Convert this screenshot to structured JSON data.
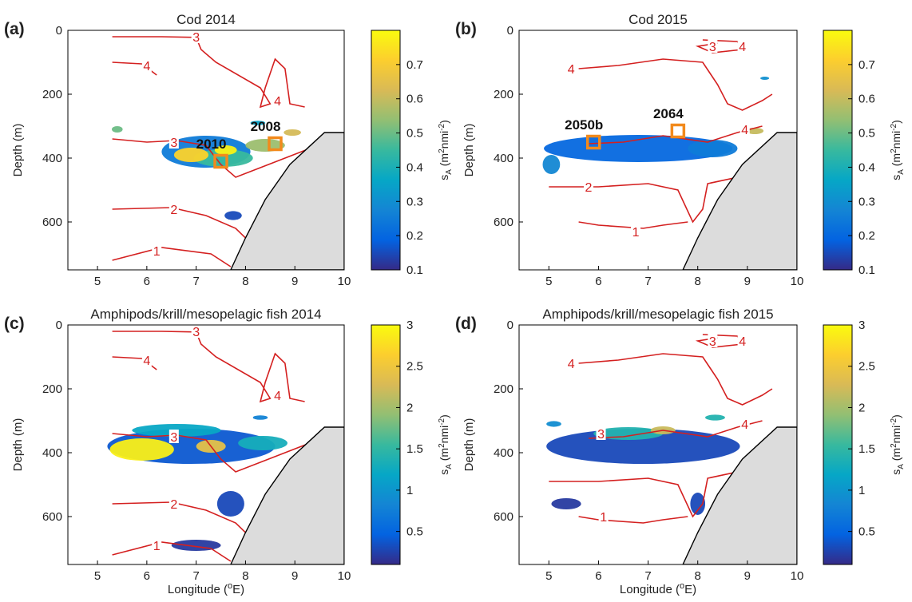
{
  "colors": {
    "contour": "#d42020",
    "station_box": "#f28a1c",
    "land": "#dcdcdc",
    "colormap": [
      "#352a87",
      "#0363e1",
      "#1485d4",
      "#06a7c6",
      "#38b99e",
      "#92bf73",
      "#d9ba56",
      "#fcce2e",
      "#f9fb0e"
    ]
  },
  "chart_data": [
    {
      "type": "heatmap",
      "panel_label": "(a)",
      "title": "Cod 2014",
      "xlabel": "",
      "ylabel": "Depth (m)",
      "xlim": [
        4.4,
        10
      ],
      "ylim": [
        0,
        750
      ],
      "xticks": [
        "5",
        "6",
        "7",
        "8",
        "9",
        "10"
      ],
      "yticks": [
        "0",
        "200",
        "400",
        "600"
      ],
      "colorbar": {
        "label_main": "s",
        "label_sub": "A",
        "label_unit": " (m",
        "label_exp1": "2",
        "label_mid": "nmi",
        "label_exp2": "-2",
        "label_end": ")",
        "ticks": [
          "0.1",
          "0.2",
          "0.3",
          "0.4",
          "0.5",
          "0.6",
          "0.7"
        ],
        "range": [
          0.1,
          0.8
        ]
      },
      "contour_labels": [
        {
          "text": "3",
          "x": 7.0,
          "y": 20
        },
        {
          "text": "4",
          "x": 6.0,
          "y": 110
        },
        {
          "text": "4",
          "x": 8.65,
          "y": 220
        },
        {
          "text": "3",
          "x": 6.55,
          "y": 350
        },
        {
          "text": "2",
          "x": 6.55,
          "y": 560
        },
        {
          "text": "1",
          "x": 6.2,
          "y": 690
        }
      ],
      "stations": [
        {
          "name": "2010",
          "x": 7.5,
          "y": 410
        },
        {
          "name": "2008",
          "x": 8.6,
          "y": 355
        }
      ],
      "blobs": [
        {
          "x": 7.2,
          "y": 380,
          "w": 1.8,
          "h": 100,
          "v": 0.25
        },
        {
          "x": 7.55,
          "y": 400,
          "w": 1.2,
          "h": 55,
          "v": 0.45
        },
        {
          "x": 6.9,
          "y": 390,
          "w": 0.7,
          "h": 45,
          "v": 0.72
        },
        {
          "x": 7.6,
          "y": 375,
          "w": 0.45,
          "h": 30,
          "v": 0.78
        },
        {
          "x": 8.4,
          "y": 360,
          "w": 0.8,
          "h": 40,
          "v": 0.55
        },
        {
          "x": 8.95,
          "y": 320,
          "w": 0.35,
          "h": 20,
          "v": 0.62
        },
        {
          "x": 8.25,
          "y": 290,
          "w": 0.3,
          "h": 14,
          "v": 0.35
        },
        {
          "x": 5.4,
          "y": 310,
          "w": 0.22,
          "h": 20,
          "v": 0.5
        },
        {
          "x": 7.75,
          "y": 580,
          "w": 0.35,
          "h": 28,
          "v": 0.15
        }
      ]
    },
    {
      "type": "heatmap",
      "panel_label": "(b)",
      "title": "Cod 2015",
      "xlabel": "",
      "ylabel": "Depth (m)",
      "xlim": [
        4.4,
        10
      ],
      "ylim": [
        0,
        750
      ],
      "xticks": [
        "5",
        "6",
        "7",
        "8",
        "9",
        "10"
      ],
      "yticks": [
        "0",
        "200",
        "400",
        "600"
      ],
      "colorbar": {
        "label_main": "s",
        "label_sub": "A",
        "label_unit": " (m",
        "label_exp1": "2",
        "label_mid": "nmi",
        "label_exp2": "-2",
        "label_end": ")",
        "ticks": [
          "0.1",
          "0.2",
          "0.3",
          "0.4",
          "0.5",
          "0.6",
          "0.7"
        ],
        "range": [
          0.1,
          0.8
        ]
      },
      "contour_labels": [
        {
          "text": "3",
          "x": 8.3,
          "y": 50
        },
        {
          "text": "4",
          "x": 8.9,
          "y": 50
        },
        {
          "text": "4",
          "x": 5.45,
          "y": 120
        },
        {
          "text": "4",
          "x": 8.95,
          "y": 310
        },
        {
          "text": "2",
          "x": 5.8,
          "y": 490
        },
        {
          "text": "1",
          "x": 6.75,
          "y": 630
        }
      ],
      "stations": [
        {
          "name": "2050b",
          "x": 5.9,
          "y": 350
        },
        {
          "name": "2064",
          "x": 7.6,
          "y": 315
        }
      ],
      "blobs": [
        {
          "x": 6.8,
          "y": 370,
          "w": 3.8,
          "h": 85,
          "v": 0.2
        },
        {
          "x": 5.05,
          "y": 420,
          "w": 0.35,
          "h": 60,
          "v": 0.28
        },
        {
          "x": 8.3,
          "y": 370,
          "w": 1.0,
          "h": 55,
          "v": 0.25
        },
        {
          "x": 9.15,
          "y": 315,
          "w": 0.35,
          "h": 20,
          "v": 0.6
        },
        {
          "x": 9.35,
          "y": 150,
          "w": 0.18,
          "h": 10,
          "v": 0.3
        }
      ]
    },
    {
      "type": "heatmap",
      "panel_label": "(c)",
      "title": "Amphipods/krill/mesopelagic fish 2014",
      "xlabel": "Longitude (",
      "xlabel_exp": "o",
      "xlabel_end": "E)",
      "ylabel": "Depth (m)",
      "xlim": [
        4.4,
        10
      ],
      "ylim": [
        0,
        750
      ],
      "xticks": [
        "5",
        "6",
        "7",
        "8",
        "9",
        "10"
      ],
      "yticks": [
        "0",
        "200",
        "400",
        "600"
      ],
      "colorbar": {
        "label_main": "s",
        "label_sub": "A",
        "label_unit": " (m",
        "label_exp1": "2",
        "label_mid": "nmi",
        "label_exp2": "-2",
        "label_end": ")",
        "ticks": [
          "0.5",
          "1",
          "1.5",
          "2",
          "2.5",
          "3"
        ],
        "range": [
          0.1,
          3.0
        ]
      },
      "contour_labels": [
        {
          "text": "3",
          "x": 7.0,
          "y": 20
        },
        {
          "text": "4",
          "x": 6.0,
          "y": 110
        },
        {
          "text": "4",
          "x": 8.65,
          "y": 220
        },
        {
          "text": "3",
          "x": 6.55,
          "y": 350
        },
        {
          "text": "2",
          "x": 6.55,
          "y": 560
        },
        {
          "text": "1",
          "x": 6.2,
          "y": 690
        }
      ],
      "stations": [],
      "blobs": [
        {
          "x": 6.9,
          "y": 380,
          "w": 3.4,
          "h": 110,
          "v": 0.4
        },
        {
          "x": 5.9,
          "y": 390,
          "w": 1.3,
          "h": 70,
          "v": 2.9
        },
        {
          "x": 6.6,
          "y": 330,
          "w": 1.8,
          "h": 40,
          "v": 1.2
        },
        {
          "x": 7.3,
          "y": 380,
          "w": 0.6,
          "h": 40,
          "v": 2.4
        },
        {
          "x": 8.35,
          "y": 370,
          "w": 1.0,
          "h": 45,
          "v": 1.3
        },
        {
          "x": 7.7,
          "y": 560,
          "w": 0.55,
          "h": 80,
          "v": 0.3
        },
        {
          "x": 7.0,
          "y": 690,
          "w": 1.0,
          "h": 35,
          "v": 0.2
        },
        {
          "x": 8.3,
          "y": 290,
          "w": 0.3,
          "h": 14,
          "v": 0.8
        }
      ]
    },
    {
      "type": "heatmap",
      "panel_label": "(d)",
      "title": "Amphipods/krill/mesopelagic fish 2015",
      "xlabel": "Longitude (",
      "xlabel_exp": "o",
      "xlabel_end": "E)",
      "ylabel": "Depth (m)",
      "xlim": [
        4.4,
        10
      ],
      "ylim": [
        0,
        750
      ],
      "xticks": [
        "5",
        "6",
        "7",
        "8",
        "9",
        "10"
      ],
      "yticks": [
        "0",
        "200",
        "400",
        "600"
      ],
      "colorbar": {
        "label_main": "s",
        "label_sub": "A",
        "label_unit": " (m",
        "label_exp1": "2",
        "label_mid": "nmi",
        "label_exp2": "-2",
        "label_end": ")",
        "ticks": [
          "0.5",
          "1",
          "1.5",
          "2",
          "2.5",
          "3"
        ],
        "range": [
          0.1,
          3.0
        ]
      },
      "contour_labels": [
        {
          "text": "3",
          "x": 8.3,
          "y": 50
        },
        {
          "text": "4",
          "x": 8.9,
          "y": 50
        },
        {
          "text": "4",
          "x": 5.45,
          "y": 120
        },
        {
          "text": "3",
          "x": 6.05,
          "y": 340
        },
        {
          "text": "4",
          "x": 8.95,
          "y": 310
        },
        {
          "text": "1",
          "x": 6.1,
          "y": 600
        }
      ],
      "stations": [],
      "blobs": [
        {
          "x": 6.9,
          "y": 380,
          "w": 3.9,
          "h": 110,
          "v": 0.3
        },
        {
          "x": 6.6,
          "y": 340,
          "w": 1.4,
          "h": 40,
          "v": 1.4
        },
        {
          "x": 7.3,
          "y": 330,
          "w": 0.5,
          "h": 25,
          "v": 2.2
        },
        {
          "x": 8.35,
          "y": 290,
          "w": 0.4,
          "h": 18,
          "v": 1.4
        },
        {
          "x": 8.0,
          "y": 560,
          "w": 0.3,
          "h": 70,
          "v": 0.3
        },
        {
          "x": 5.35,
          "y": 560,
          "w": 0.6,
          "h": 35,
          "v": 0.2
        },
        {
          "x": 5.1,
          "y": 310,
          "w": 0.3,
          "h": 18,
          "v": 0.9
        }
      ]
    }
  ]
}
